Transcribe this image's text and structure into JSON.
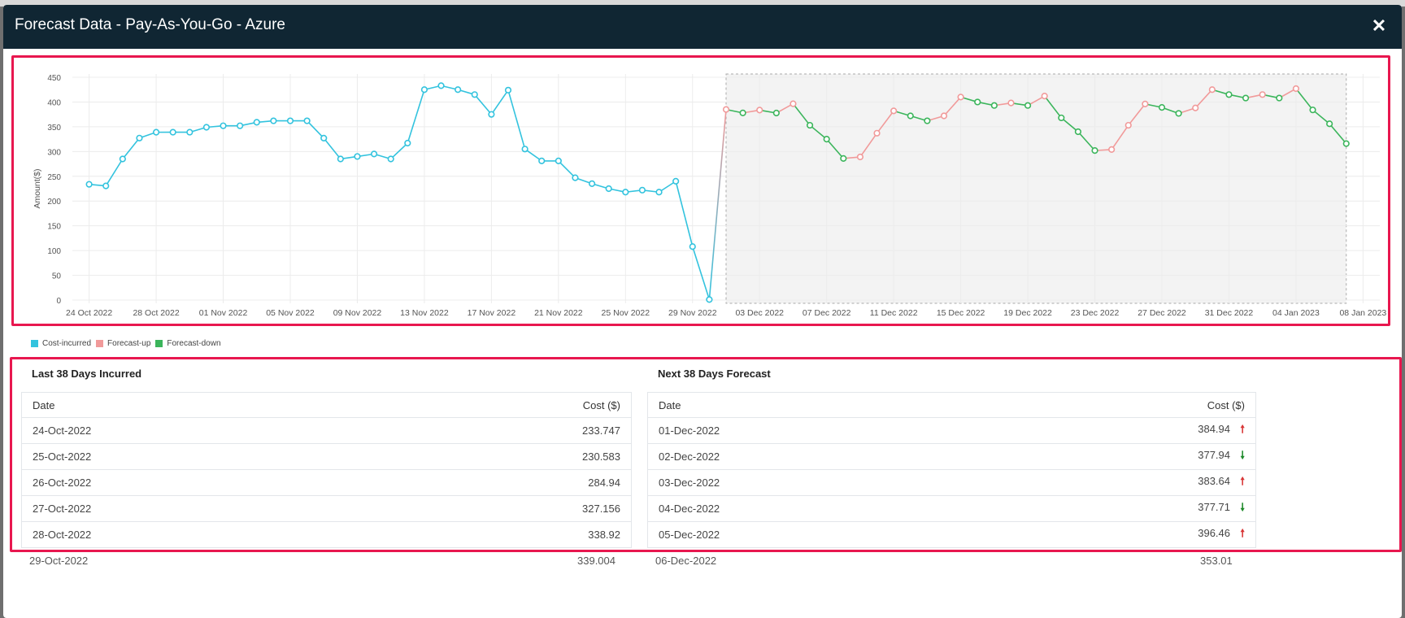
{
  "modal": {
    "title": "Forecast Data - Pay-As-You-Go - Azure",
    "close_label": "✕"
  },
  "legend": [
    {
      "label": "Cost-incurred",
      "color": "#33c3de"
    },
    {
      "label": "Forecast-up",
      "color": "#f19a9a"
    },
    {
      "label": "Forecast-down",
      "color": "#3bb55b"
    }
  ],
  "chart_data": {
    "type": "line",
    "ylabel": "Amount($)",
    "ylim": [
      0,
      450
    ],
    "yticks": [
      0,
      50,
      100,
      150,
      200,
      250,
      300,
      350,
      400,
      450
    ],
    "xlim": [
      "2022-10-23",
      "2023-01-09"
    ],
    "xticks": [
      "2022-10-24",
      "2022-10-28",
      "2022-11-01",
      "2022-11-05",
      "2022-11-09",
      "2022-11-13",
      "2022-11-17",
      "2022-11-21",
      "2022-11-25",
      "2022-11-29",
      "2022-12-03",
      "2022-12-07",
      "2022-12-11",
      "2022-12-15",
      "2022-12-19",
      "2022-12-23",
      "2022-12-27",
      "2022-12-31",
      "2023-01-04",
      "2023-01-08"
    ],
    "xtick_labels": [
      "24 Oct 2022",
      "28 Oct 2022",
      "01 Nov 2022",
      "05 Nov 2022",
      "09 Nov 2022",
      "13 Nov 2022",
      "17 Nov 2022",
      "21 Nov 2022",
      "25 Nov 2022",
      "29 Nov 2022",
      "03 Dec 2022",
      "07 Dec 2022",
      "11 Dec 2022",
      "15 Dec 2022",
      "19 Dec 2022",
      "23 Dec 2022",
      "27 Dec 2022",
      "31 Dec 2022",
      "04 Jan 2023",
      "08 Jan 2023"
    ],
    "forecast_region": [
      "2022-12-01",
      "2023-01-07"
    ],
    "grid": true,
    "incurred": {
      "name": "Cost-incurred",
      "start_date": "2022-10-24",
      "values": [
        233.747,
        230.583,
        284.94,
        327.156,
        338.92,
        339,
        339,
        349,
        352,
        352,
        359,
        362,
        362,
        362,
        327,
        285,
        290,
        295,
        285,
        317,
        425,
        433,
        425,
        415,
        375,
        424,
        305,
        281,
        281,
        247,
        235,
        225,
        218,
        222,
        218,
        240,
        108,
        1
      ]
    },
    "forecast": {
      "start_date": "2022-12-01",
      "values": [
        384.94,
        377.94,
        383.64,
        377.71,
        396.46,
        353,
        325,
        286,
        289,
        337,
        382,
        372,
        362,
        372,
        410,
        400,
        393,
        398,
        393,
        412,
        368,
        340,
        302,
        304,
        353,
        396,
        389,
        377,
        388,
        425,
        415,
        408,
        415,
        408,
        427,
        384,
        356,
        316
      ]
    }
  },
  "left_panel": {
    "title": "Last 38 Days Incurred",
    "col_date": "Date",
    "col_cost": "Cost ($)",
    "rows": [
      {
        "date": "24-Oct-2022",
        "cost": "233.747"
      },
      {
        "date": "25-Oct-2022",
        "cost": "230.583"
      },
      {
        "date": "26-Oct-2022",
        "cost": "284.94"
      },
      {
        "date": "27-Oct-2022",
        "cost": "327.156"
      },
      {
        "date": "28-Oct-2022",
        "cost": "338.92"
      }
    ],
    "partial_row": {
      "date": "29-Oct-2022",
      "cost": "339.004"
    }
  },
  "right_panel": {
    "title": "Next 38 Days Forecast",
    "col_date": "Date",
    "col_cost": "Cost ($)",
    "up_arrow": "🠕",
    "down_arrow": "🠗",
    "rows": [
      {
        "date": "01-Dec-2022",
        "cost": "384.94",
        "trend": "up"
      },
      {
        "date": "02-Dec-2022",
        "cost": "377.94",
        "trend": "down"
      },
      {
        "date": "03-Dec-2022",
        "cost": "383.64",
        "trend": "up"
      },
      {
        "date": "04-Dec-2022",
        "cost": "377.71",
        "trend": "down"
      },
      {
        "date": "05-Dec-2022",
        "cost": "396.46",
        "trend": "up"
      }
    ],
    "partial_row": {
      "date": "06-Dec-2022",
      "cost": "353.01"
    }
  }
}
